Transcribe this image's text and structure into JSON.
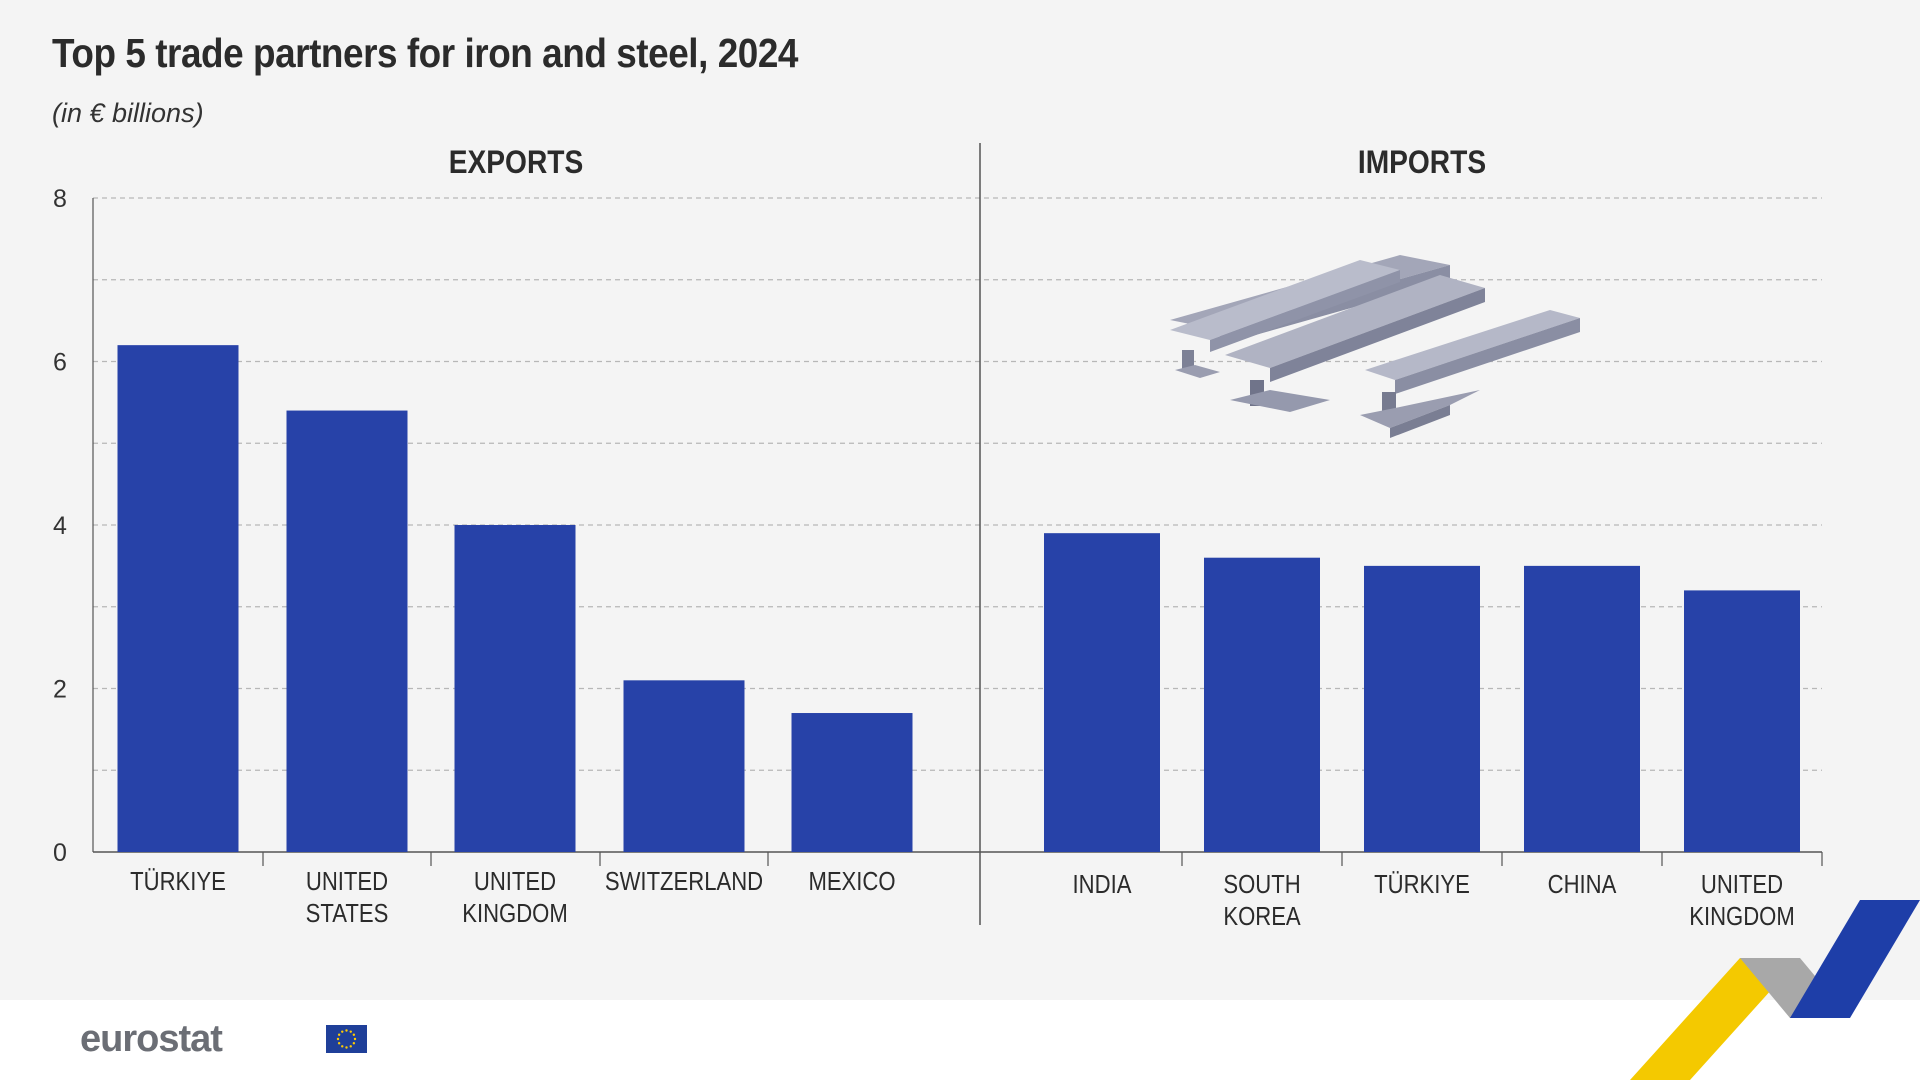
{
  "title": "Top 5 trade partners for iron and steel, 2024",
  "subtitle": "(in € billions)",
  "logo": "eurostat",
  "colors": {
    "bar": "#2742a8",
    "background": "#f4f4f4",
    "grid": "#b7b7b7",
    "axis": "#555555"
  },
  "chart_data": [
    {
      "type": "bar",
      "panel": "EXPORTS",
      "categories": [
        "TÜRKIYE",
        "UNITED\nSTATES",
        "UNITED\nKINGDOM",
        "SWITZERLAND",
        "MEXICO"
      ],
      "values": [
        6.2,
        5.4,
        4.0,
        2.1,
        1.7
      ],
      "ylim": [
        0,
        8
      ],
      "yticks": [
        0,
        2,
        4,
        6,
        8
      ],
      "grid": true
    },
    {
      "type": "bar",
      "panel": "IMPORTS",
      "categories": [
        "INDIA",
        "SOUTH\nKOREA",
        "TÜRKIYE",
        "CHINA",
        "UNITED\nKINGDOM"
      ],
      "values": [
        3.9,
        3.6,
        3.5,
        3.5,
        3.2
      ],
      "ylim": [
        0,
        8
      ],
      "yticks": [
        0,
        2,
        4,
        6,
        8
      ],
      "grid": true
    }
  ],
  "illustration": "steel-beams-icon"
}
